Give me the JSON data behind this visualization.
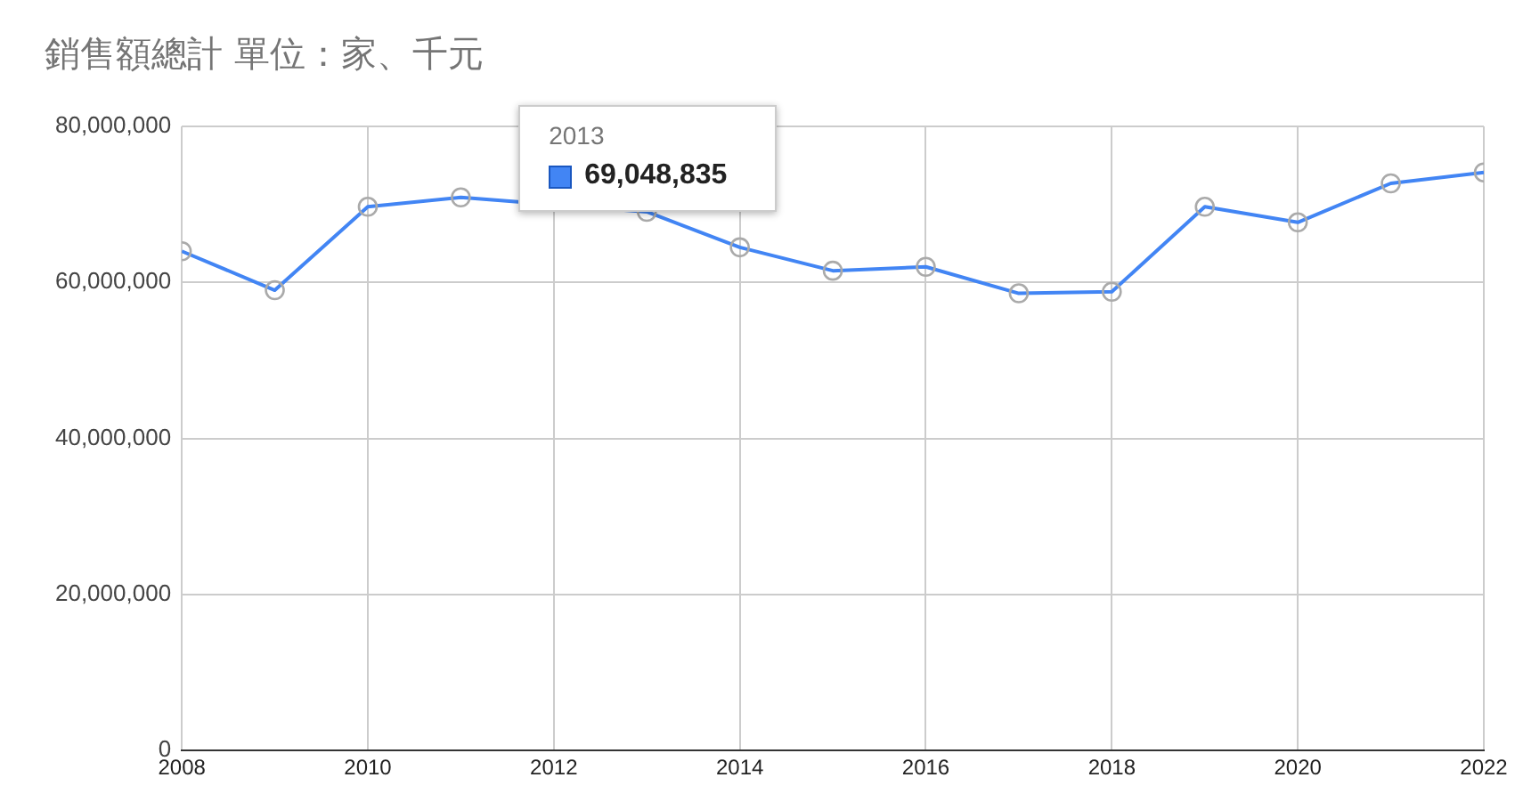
{
  "chart_data": {
    "type": "line",
    "title": "銷售額總計 單位：家、千元",
    "x": [
      2008,
      2009,
      2010,
      2011,
      2012,
      2013,
      2014,
      2015,
      2016,
      2017,
      2018,
      2019,
      2020,
      2021,
      2022
    ],
    "annotations": [
      "2013"
    ],
    "series": [
      {
        "color": "#4285f4",
        "values": [
          64000000,
          59000000,
          69700000,
          70900000,
          null,
          69048835,
          64500000,
          61500000,
          62000000,
          58600000,
          58800000,
          69700000,
          67700000,
          72700000,
          74100000
        ],
        "value_labels": [
          null,
          null,
          null,
          null,
          null,
          "69,048,835",
          null,
          null,
          null,
          null,
          null,
          null,
          null,
          null,
          null
        ]
      }
    ],
    "xlim": [
      2008,
      2022
    ],
    "xticks": [
      2008,
      2010,
      2012,
      2014,
      2016,
      2018,
      2020,
      2022
    ],
    "ylim": [
      0,
      80000000
    ],
    "yticks": [
      0,
      {
        "value": 20000000,
        "label": "20,000,000"
      },
      {
        "value": 40000000,
        "label": "40,000,000"
      },
      {
        "value": 60000000,
        "label": "60,000,000"
      },
      {
        "value": 80000000,
        "label": "80,000,000"
      }
    ],
    "grid": true,
    "legend": false,
    "marker": "circle",
    "line_style": "solid"
  }
}
